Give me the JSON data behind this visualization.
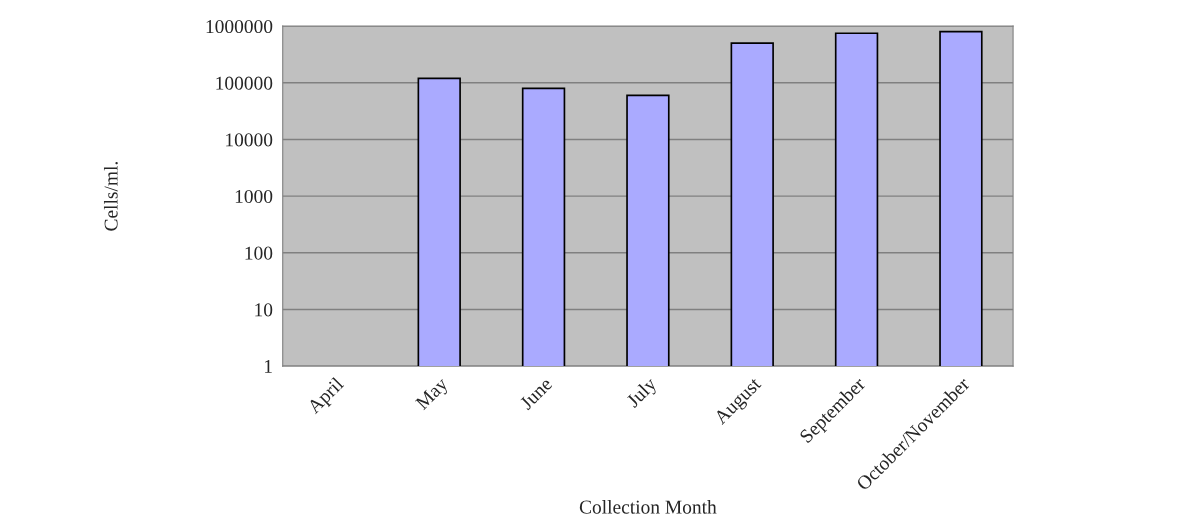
{
  "chart_data": {
    "type": "bar",
    "xlabel": "Collection Month",
    "ylabel": "Cells/ml.",
    "categories": [
      "April",
      "May",
      "June",
      "July",
      "August",
      "September",
      "October/November"
    ],
    "series": [
      {
        "color": "#aaaaff",
        "values": [
          null,
          120000,
          80000,
          60000,
          500000,
          750000,
          800000
        ]
      }
    ],
    "log": "y",
    "ylim": [
      1,
      1000000
    ],
    "yticks": [
      1,
      10,
      100,
      1000,
      10000,
      100000,
      1000000
    ],
    "grid": "y"
  }
}
